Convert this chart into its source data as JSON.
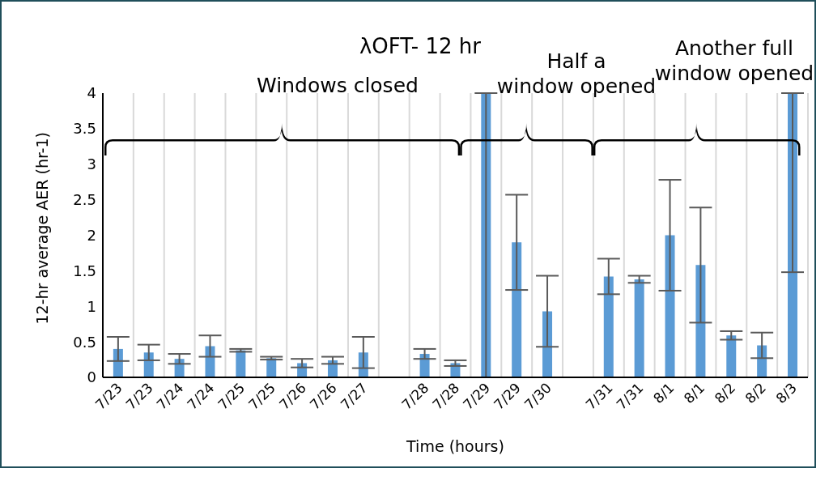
{
  "chart_data": {
    "type": "bar",
    "title": "λOFT- 12 hr",
    "xlabel": "Time (hours)",
    "ylabel": "12-hr average AER (hr-1)",
    "categories": [
      "7/23",
      "7/23",
      "7/24",
      "7/24",
      "7/25",
      "7/25",
      "7/26",
      "7/26",
      "7/27",
      null,
      "7/28",
      "7/28",
      "7/29",
      "7/29",
      "7/30",
      null,
      "7/31",
      "7/31",
      "8/1",
      "8/1",
      "8/2",
      "8/2",
      "8/3"
    ],
    "values": [
      0.4,
      0.35,
      0.26,
      0.44,
      0.38,
      0.27,
      0.2,
      0.24,
      0.35,
      null,
      0.33,
      0.2,
      4,
      1.9,
      0.93,
      null,
      1.42,
      1.38,
      2.0,
      1.58,
      0.59,
      0.45,
      4
    ],
    "errors": [
      0.17,
      0.11,
      0.07,
      0.15,
      0.02,
      0.02,
      0.06,
      0.05,
      0.22,
      null,
      0.07,
      0.04,
      [
        0,
        4
      ],
      0.67,
      0.5,
      null,
      0.25,
      0.05,
      0.78,
      0.81,
      0.06,
      0.18,
      [
        1.48,
        4
      ]
    ],
    "color": "#5b9bd5",
    "ylim": [
      0,
      4
    ],
    "yticks": [
      0,
      0.5,
      1,
      1.5,
      2,
      2.5,
      3,
      3.5,
      4
    ],
    "grid": "x",
    "annotations": [
      "Windows closed",
      "Half a window opened",
      "Another full window opened"
    ]
  }
}
